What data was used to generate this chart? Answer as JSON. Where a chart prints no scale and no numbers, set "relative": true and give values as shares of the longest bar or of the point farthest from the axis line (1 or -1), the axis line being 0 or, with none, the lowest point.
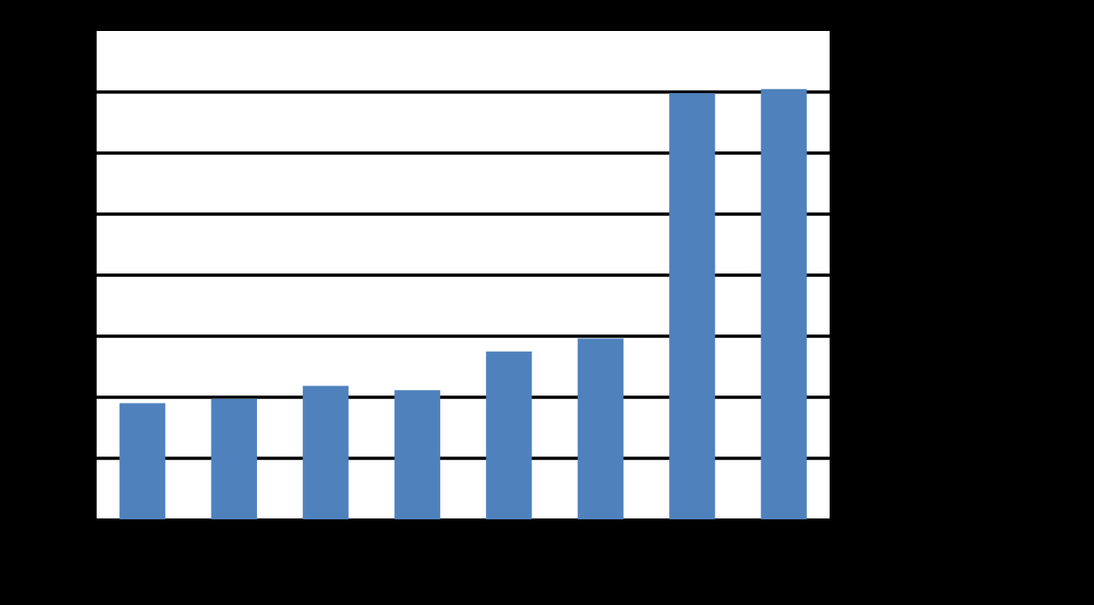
{
  "chart_data": {
    "type": "bar",
    "relative": true,
    "categories": [
      null,
      null,
      null,
      null,
      null,
      null,
      null,
      null
    ],
    "series": [
      {
        "color": "#4f81bd",
        "values": [
          0.27,
          0.28,
          0.31,
          0.3,
          0.39,
          0.42,
          0.99,
          1.0
        ]
      }
    ],
    "grid": "y"
  }
}
